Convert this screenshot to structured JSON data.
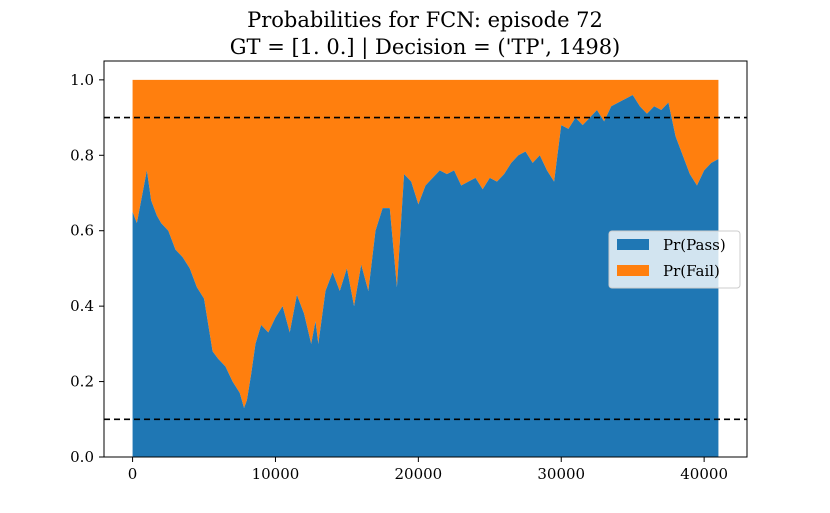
{
  "chart_data": {
    "type": "area",
    "stacked": true,
    "title": "Probabilities for FCN: episode 72\nGT = [1. 0.] | Decision = ('TP', 1498)",
    "title_lines": [
      "Probabilities for FCN: episode 72",
      "GT = [1. 0.] | Decision = ('TP', 1498)"
    ],
    "xlabel": "",
    "ylabel": "",
    "xlim": [
      -2000,
      43000
    ],
    "ylim": [
      0,
      1.05
    ],
    "xticks": [
      0,
      10000,
      20000,
      30000,
      40000
    ],
    "yticks": [
      0.0,
      0.2,
      0.4,
      0.6,
      0.8,
      1.0
    ],
    "xtick_labels": [
      "0",
      "10000",
      "20000",
      "30000",
      "40000"
    ],
    "ytick_labels": [
      "0.0",
      "0.2",
      "0.4",
      "0.6",
      "0.8",
      "1.0"
    ],
    "grid": false,
    "legend_placement": "center-right",
    "thresholds": [
      0.9,
      0.1
    ],
    "series": [
      {
        "name": "Pr(Pass)",
        "color": "#1f77b4",
        "x": [
          0,
          300,
          700,
          1000,
          1300,
          1700,
          2000,
          2500,
          3000,
          3500,
          4000,
          4500,
          5000,
          5300,
          5600,
          6000,
          6500,
          7000,
          7500,
          7800,
          8000,
          8300,
          8600,
          9000,
          9500,
          10000,
          10500,
          11000,
          11500,
          12000,
          12500,
          12800,
          13000,
          13500,
          14000,
          14500,
          15000,
          15500,
          16000,
          16500,
          17000,
          17500,
          18000,
          18500,
          19000,
          19500,
          20000,
          20500,
          21000,
          21500,
          22000,
          22500,
          23000,
          23500,
          24000,
          24500,
          25000,
          25500,
          26000,
          26500,
          27000,
          27500,
          28000,
          28500,
          29000,
          29500,
          30000,
          30500,
          31000,
          31500,
          32000,
          32500,
          33000,
          33500,
          34000,
          34500,
          35000,
          35500,
          36000,
          36500,
          37000,
          37500,
          38000,
          38500,
          39000,
          39500,
          40000,
          40500,
          41000
        ],
        "values": [
          0.65,
          0.62,
          0.7,
          0.76,
          0.68,
          0.64,
          0.62,
          0.6,
          0.55,
          0.53,
          0.5,
          0.45,
          0.42,
          0.35,
          0.28,
          0.26,
          0.24,
          0.2,
          0.17,
          0.13,
          0.15,
          0.22,
          0.3,
          0.35,
          0.33,
          0.37,
          0.4,
          0.33,
          0.43,
          0.38,
          0.3,
          0.36,
          0.3,
          0.44,
          0.49,
          0.44,
          0.5,
          0.4,
          0.51,
          0.44,
          0.6,
          0.66,
          0.66,
          0.45,
          0.75,
          0.73,
          0.67,
          0.72,
          0.74,
          0.76,
          0.75,
          0.76,
          0.72,
          0.73,
          0.74,
          0.71,
          0.74,
          0.73,
          0.75,
          0.78,
          0.8,
          0.81,
          0.78,
          0.8,
          0.76,
          0.73,
          0.88,
          0.87,
          0.9,
          0.88,
          0.9,
          0.92,
          0.89,
          0.93,
          0.94,
          0.95,
          0.96,
          0.93,
          0.91,
          0.93,
          0.92,
          0.94,
          0.85,
          0.8,
          0.75,
          0.72,
          0.76,
          0.78,
          0.79
        ]
      },
      {
        "name": "Pr(Fail)",
        "color": "#ff7f0e",
        "note_values": "complement of Pr(Pass); stacked to 1.0"
      }
    ]
  }
}
